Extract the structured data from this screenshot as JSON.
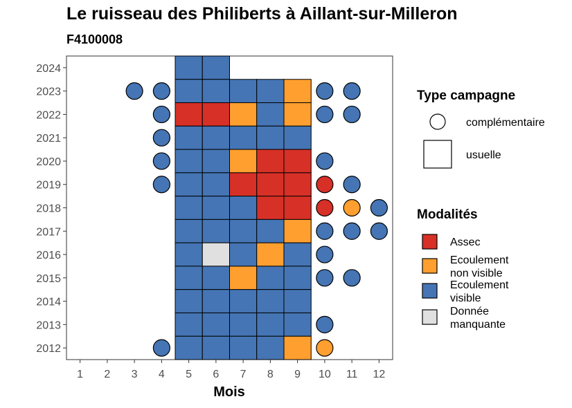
{
  "chart_data": {
    "type": "heatmap",
    "title": "Le ruisseau des Philiberts à Aillant-sur-Milleron",
    "subtitle": "F4100008",
    "xlabel": "Mois",
    "ylabel": "",
    "x_ticks": [
      "1",
      "2",
      "3",
      "4",
      "5",
      "6",
      "7",
      "8",
      "9",
      "10",
      "11",
      "12"
    ],
    "y_ticks": [
      "2012",
      "2013",
      "2014",
      "2015",
      "2016",
      "2017",
      "2018",
      "2019",
      "2020",
      "2021",
      "2022",
      "2023",
      "2024"
    ],
    "xlim": [
      0.5,
      12.5
    ],
    "ylim": [
      2011.5,
      2024.5
    ],
    "grid": false,
    "legend_position": "right",
    "campaign_legend": {
      "title": "Type campagne",
      "items": [
        {
          "key": "C",
          "label": "complémentaire",
          "shape": "circle"
        },
        {
          "key": "U",
          "label": "usuelle",
          "shape": "square"
        }
      ]
    },
    "modalities_legend": {
      "title": "Modalités",
      "items": [
        {
          "key": "A",
          "lines": [
            "Assec"
          ],
          "color": "#d73027"
        },
        {
          "key": "N",
          "lines": [
            "Ecoulement",
            "non visible"
          ],
          "color": "#fe9f2f"
        },
        {
          "key": "V",
          "lines": [
            "Ecoulement",
            "visible"
          ],
          "color": "#4575b4"
        },
        {
          "key": "M",
          "lines": [
            "Donnée",
            "manquante"
          ],
          "color": "#e0e0e0"
        }
      ]
    },
    "observations": [
      {
        "year": 2024,
        "month": 5,
        "campaign": "U",
        "modality": "V"
      },
      {
        "year": 2024,
        "month": 6,
        "campaign": "U",
        "modality": "V"
      },
      {
        "year": 2023,
        "month": 3,
        "campaign": "C",
        "modality": "V"
      },
      {
        "year": 2023,
        "month": 4,
        "campaign": "C",
        "modality": "V"
      },
      {
        "year": 2023,
        "month": 5,
        "campaign": "U",
        "modality": "V"
      },
      {
        "year": 2023,
        "month": 6,
        "campaign": "U",
        "modality": "V"
      },
      {
        "year": 2023,
        "month": 7,
        "campaign": "U",
        "modality": "V"
      },
      {
        "year": 2023,
        "month": 8,
        "campaign": "U",
        "modality": "V"
      },
      {
        "year": 2023,
        "month": 9,
        "campaign": "U",
        "modality": "N"
      },
      {
        "year": 2023,
        "month": 10,
        "campaign": "C",
        "modality": "V"
      },
      {
        "year": 2023,
        "month": 11,
        "campaign": "C",
        "modality": "V"
      },
      {
        "year": 2022,
        "month": 4,
        "campaign": "C",
        "modality": "V"
      },
      {
        "year": 2022,
        "month": 5,
        "campaign": "U",
        "modality": "A"
      },
      {
        "year": 2022,
        "month": 6,
        "campaign": "U",
        "modality": "A"
      },
      {
        "year": 2022,
        "month": 7,
        "campaign": "U",
        "modality": "N"
      },
      {
        "year": 2022,
        "month": 8,
        "campaign": "U",
        "modality": "V"
      },
      {
        "year": 2022,
        "month": 9,
        "campaign": "U",
        "modality": "N"
      },
      {
        "year": 2022,
        "month": 10,
        "campaign": "C",
        "modality": "V"
      },
      {
        "year": 2022,
        "month": 11,
        "campaign": "C",
        "modality": "V"
      },
      {
        "year": 2021,
        "month": 4,
        "campaign": "C",
        "modality": "V"
      },
      {
        "year": 2021,
        "month": 5,
        "campaign": "U",
        "modality": "V"
      },
      {
        "year": 2021,
        "month": 6,
        "campaign": "U",
        "modality": "V"
      },
      {
        "year": 2021,
        "month": 7,
        "campaign": "U",
        "modality": "V"
      },
      {
        "year": 2021,
        "month": 8,
        "campaign": "U",
        "modality": "V"
      },
      {
        "year": 2021,
        "month": 9,
        "campaign": "U",
        "modality": "V"
      },
      {
        "year": 2020,
        "month": 4,
        "campaign": "C",
        "modality": "V"
      },
      {
        "year": 2020,
        "month": 5,
        "campaign": "U",
        "modality": "V"
      },
      {
        "year": 2020,
        "month": 6,
        "campaign": "U",
        "modality": "V"
      },
      {
        "year": 2020,
        "month": 7,
        "campaign": "U",
        "modality": "N"
      },
      {
        "year": 2020,
        "month": 8,
        "campaign": "U",
        "modality": "A"
      },
      {
        "year": 2020,
        "month": 9,
        "campaign": "U",
        "modality": "A"
      },
      {
        "year": 2020,
        "month": 10,
        "campaign": "C",
        "modality": "V"
      },
      {
        "year": 2019,
        "month": 4,
        "campaign": "C",
        "modality": "V"
      },
      {
        "year": 2019,
        "month": 5,
        "campaign": "U",
        "modality": "V"
      },
      {
        "year": 2019,
        "month": 6,
        "campaign": "U",
        "modality": "V"
      },
      {
        "year": 2019,
        "month": 7,
        "campaign": "U",
        "modality": "A"
      },
      {
        "year": 2019,
        "month": 8,
        "campaign": "U",
        "modality": "A"
      },
      {
        "year": 2019,
        "month": 9,
        "campaign": "U",
        "modality": "A"
      },
      {
        "year": 2019,
        "month": 10,
        "campaign": "C",
        "modality": "A"
      },
      {
        "year": 2019,
        "month": 11,
        "campaign": "C",
        "modality": "V"
      },
      {
        "year": 2018,
        "month": 5,
        "campaign": "U",
        "modality": "V"
      },
      {
        "year": 2018,
        "month": 6,
        "campaign": "U",
        "modality": "V"
      },
      {
        "year": 2018,
        "month": 7,
        "campaign": "U",
        "modality": "V"
      },
      {
        "year": 2018,
        "month": 8,
        "campaign": "U",
        "modality": "A"
      },
      {
        "year": 2018,
        "month": 9,
        "campaign": "U",
        "modality": "A"
      },
      {
        "year": 2018,
        "month": 10,
        "campaign": "C",
        "modality": "A"
      },
      {
        "year": 2018,
        "month": 11,
        "campaign": "C",
        "modality": "N"
      },
      {
        "year": 2018,
        "month": 12,
        "campaign": "C",
        "modality": "V"
      },
      {
        "year": 2017,
        "month": 5,
        "campaign": "U",
        "modality": "V"
      },
      {
        "year": 2017,
        "month": 6,
        "campaign": "U",
        "modality": "V"
      },
      {
        "year": 2017,
        "month": 7,
        "campaign": "U",
        "modality": "V"
      },
      {
        "year": 2017,
        "month": 8,
        "campaign": "U",
        "modality": "V"
      },
      {
        "year": 2017,
        "month": 9,
        "campaign": "U",
        "modality": "N"
      },
      {
        "year": 2017,
        "month": 10,
        "campaign": "C",
        "modality": "V"
      },
      {
        "year": 2017,
        "month": 11,
        "campaign": "C",
        "modality": "V"
      },
      {
        "year": 2017,
        "month": 12,
        "campaign": "C",
        "modality": "V"
      },
      {
        "year": 2016,
        "month": 5,
        "campaign": "U",
        "modality": "V"
      },
      {
        "year": 2016,
        "month": 6,
        "campaign": "U",
        "modality": "M"
      },
      {
        "year": 2016,
        "month": 7,
        "campaign": "U",
        "modality": "V"
      },
      {
        "year": 2016,
        "month": 8,
        "campaign": "U",
        "modality": "N"
      },
      {
        "year": 2016,
        "month": 9,
        "campaign": "U",
        "modality": "V"
      },
      {
        "year": 2016,
        "month": 10,
        "campaign": "C",
        "modality": "V"
      },
      {
        "year": 2015,
        "month": 5,
        "campaign": "U",
        "modality": "V"
      },
      {
        "year": 2015,
        "month": 6,
        "campaign": "U",
        "modality": "V"
      },
      {
        "year": 2015,
        "month": 7,
        "campaign": "U",
        "modality": "N"
      },
      {
        "year": 2015,
        "month": 8,
        "campaign": "U",
        "modality": "V"
      },
      {
        "year": 2015,
        "month": 9,
        "campaign": "U",
        "modality": "V"
      },
      {
        "year": 2015,
        "month": 10,
        "campaign": "C",
        "modality": "V"
      },
      {
        "year": 2015,
        "month": 11,
        "campaign": "C",
        "modality": "V"
      },
      {
        "year": 2014,
        "month": 5,
        "campaign": "U",
        "modality": "V"
      },
      {
        "year": 2014,
        "month": 6,
        "campaign": "U",
        "modality": "V"
      },
      {
        "year": 2014,
        "month": 7,
        "campaign": "U",
        "modality": "V"
      },
      {
        "year": 2014,
        "month": 8,
        "campaign": "U",
        "modality": "V"
      },
      {
        "year": 2014,
        "month": 9,
        "campaign": "U",
        "modality": "V"
      },
      {
        "year": 2013,
        "month": 5,
        "campaign": "U",
        "modality": "V"
      },
      {
        "year": 2013,
        "month": 6,
        "campaign": "U",
        "modality": "V"
      },
      {
        "year": 2013,
        "month": 7,
        "campaign": "U",
        "modality": "V"
      },
      {
        "year": 2013,
        "month": 8,
        "campaign": "U",
        "modality": "V"
      },
      {
        "year": 2013,
        "month": 9,
        "campaign": "U",
        "modality": "V"
      },
      {
        "year": 2013,
        "month": 10,
        "campaign": "C",
        "modality": "V"
      },
      {
        "year": 2012,
        "month": 4,
        "campaign": "C",
        "modality": "V"
      },
      {
        "year": 2012,
        "month": 5,
        "campaign": "U",
        "modality": "V"
      },
      {
        "year": 2012,
        "month": 6,
        "campaign": "U",
        "modality": "V"
      },
      {
        "year": 2012,
        "month": 7,
        "campaign": "U",
        "modality": "V"
      },
      {
        "year": 2012,
        "month": 8,
        "campaign": "U",
        "modality": "V"
      },
      {
        "year": 2012,
        "month": 9,
        "campaign": "U",
        "modality": "N"
      },
      {
        "year": 2012,
        "month": 10,
        "campaign": "C",
        "modality": "N"
      }
    ]
  }
}
